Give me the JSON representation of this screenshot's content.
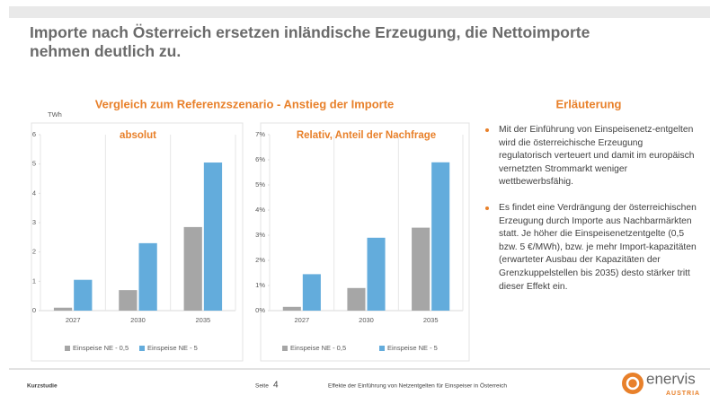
{
  "header": {
    "title": "Importe nach Österreich ersetzen inländische Erzeugung, die Nettoimporte nehmen deutlich zu."
  },
  "section_title": "Vergleich zum Referenzszenario - Anstieg der Importe",
  "chart_data": [
    {
      "type": "bar",
      "title": "absolut",
      "y_axis_label": "TWh",
      "categories": [
        "2027",
        "2030",
        "2035"
      ],
      "series": [
        {
          "name": "Einspeise NE - 0,5",
          "color": "#a6a6a6",
          "values": [
            0.1,
            0.7,
            2.85
          ]
        },
        {
          "name": "Einspeise NE - 5",
          "color": "#63acdc",
          "values": [
            1.05,
            2.3,
            5.05
          ]
        }
      ],
      "ylim": [
        0,
        6
      ],
      "yticks": [
        0,
        1,
        2,
        3,
        4,
        5,
        6
      ],
      "legend": "bottom"
    },
    {
      "type": "bar",
      "title": "Relativ, Anteil der Nachfrage",
      "categories": [
        "2027",
        "2030",
        "2035"
      ],
      "series": [
        {
          "name": "Einspeise NE - 0,5",
          "color": "#a6a6a6",
          "values": [
            0.15,
            0.9,
            3.3
          ]
        },
        {
          "name": "Einspeise NE - 5",
          "color": "#63acdc",
          "values": [
            1.45,
            2.9,
            5.9
          ]
        }
      ],
      "ylim": [
        0,
        7
      ],
      "yticks": [
        {
          "value": 0,
          "label": "0%"
        },
        {
          "value": 1,
          "label": "1%"
        },
        {
          "value": 2,
          "label": "2%"
        },
        {
          "value": 3,
          "label": "3%"
        },
        {
          "value": 4,
          "label": "4%"
        },
        {
          "value": 5,
          "label": "5%"
        },
        {
          "value": 6,
          "label": "6%"
        },
        {
          "value": 7,
          "label": "7%"
        }
      ],
      "legend": "bottom"
    }
  ],
  "explanation": {
    "title": "Erläuterung",
    "bullets": [
      "Mit der Einführung von Einspeisenetz-entgelten wird die österreichische Erzeugung regulatorisch verteuert und damit im europäisch vernetzten Strommarkt weniger wettbewerbsfähig.",
      "Es findet eine Verdrängung der österreichischen Erzeugung durch Importe aus Nachbarmärkten statt. Je höher die Einspeisenetzentgelte (0,5 bzw. 5 €/MWh), bzw. je mehr Import-kapazitäten (erwarteter Ausbau der Kapazitäten der Grenzkuppelstellen bis 2035) desto stärker tritt dieser Effekt ein."
    ]
  },
  "footer": {
    "left": "Kurzstudie",
    "page_label": "Seite",
    "page_number": 4,
    "text": "Effekte der Einführung von Netzentgelten für Einspeiser in Österreich"
  },
  "logo": {
    "name": "enervis",
    "sub": "AUSTRIA"
  }
}
